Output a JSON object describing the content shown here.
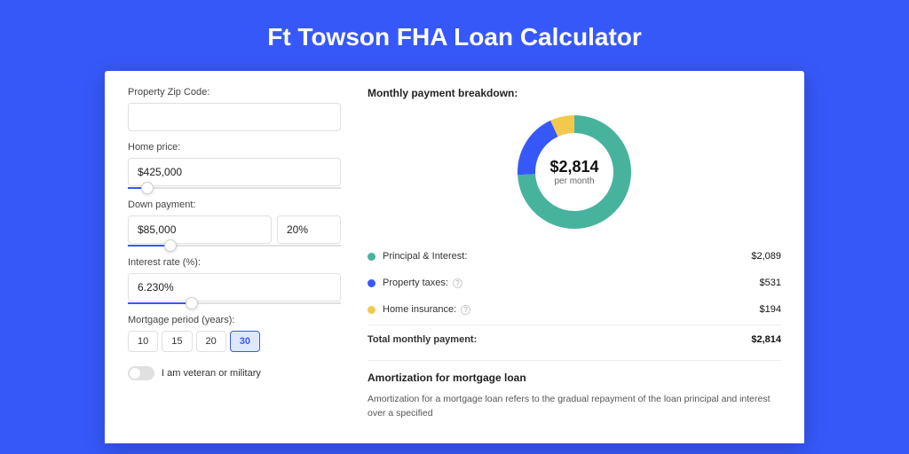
{
  "colors": {
    "page_bg": "#3758f9",
    "card_bg": "#ffffff",
    "accent": "#3758f9"
  },
  "title": "Ft Towson FHA Loan Calculator",
  "form": {
    "zip": {
      "label": "Property Zip Code:",
      "value": ""
    },
    "home_price": {
      "label": "Home price:",
      "value": "$425,000",
      "slider_pct": 9
    },
    "down_payment": {
      "label": "Down payment:",
      "amount": "$85,000",
      "percent": "20%",
      "slider_pct": 20
    },
    "interest_rate": {
      "label": "Interest rate (%):",
      "value": "6.230%",
      "slider_pct": 30
    },
    "mortgage_period": {
      "label": "Mortgage period (years):",
      "options": [
        "10",
        "15",
        "20",
        "30"
      ],
      "active_index": 3
    },
    "veteran": {
      "label": "I am veteran or military",
      "checked": false
    }
  },
  "breakdown": {
    "title": "Monthly payment breakdown:",
    "center_amount": "$2,814",
    "center_sub": "per month",
    "donut": {
      "size": 128,
      "thickness": 20,
      "series": [
        {
          "key": "pi",
          "pct": 74.2,
          "color": "#47b39c"
        },
        {
          "key": "tax",
          "pct": 18.9,
          "color": "#3758f9"
        },
        {
          "key": "ins",
          "pct": 6.9,
          "color": "#f2c94c"
        }
      ]
    },
    "items": [
      {
        "key": "pi",
        "label": "Principal & Interest:",
        "value": "$2,089",
        "color": "#47b39c",
        "help": false
      },
      {
        "key": "tax",
        "label": "Property taxes:",
        "value": "$531",
        "color": "#3758f9",
        "help": true
      },
      {
        "key": "ins",
        "label": "Home insurance:",
        "value": "$194",
        "color": "#f2c94c",
        "help": true
      }
    ],
    "total_label": "Total monthly payment:",
    "total_value": "$2,814"
  },
  "amortization": {
    "title": "Amortization for mortgage loan",
    "text": "Amortization for a mortgage loan refers to the gradual repayment of the loan principal and interest over a specified"
  }
}
